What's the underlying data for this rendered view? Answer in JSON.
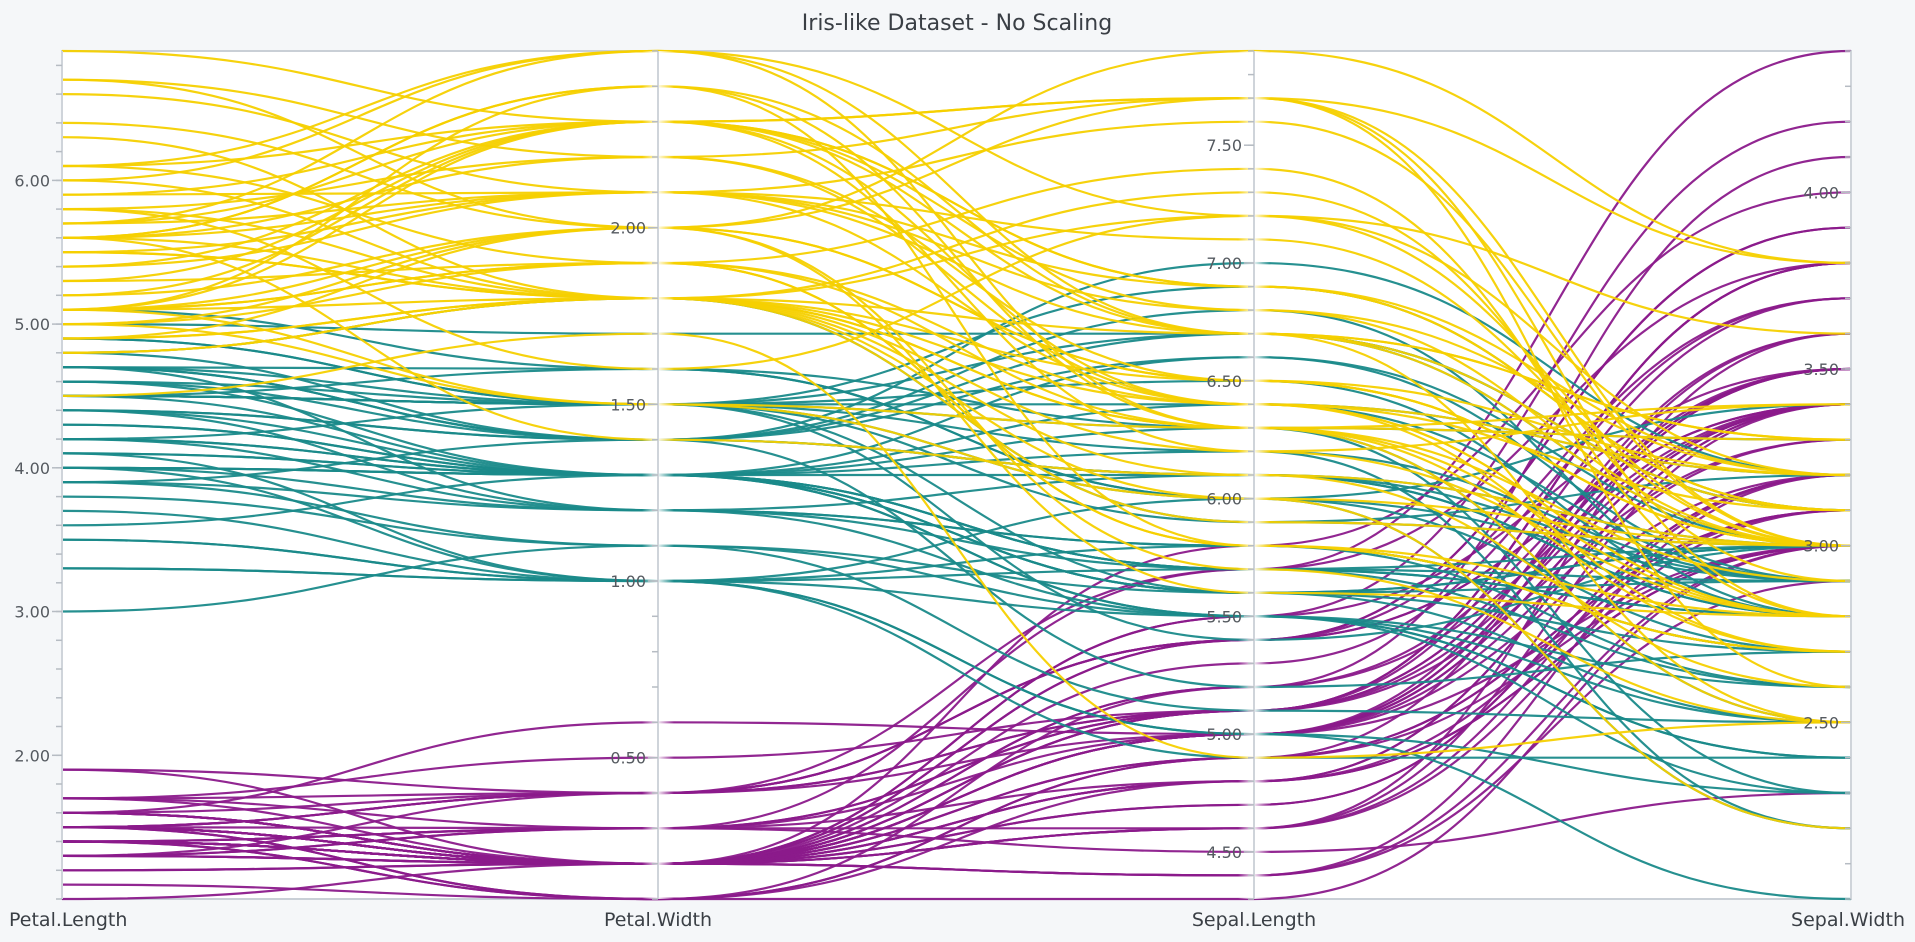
{
  "chart_data": {
    "type": "parallel-coordinates",
    "title": "Iris-like Dataset - No Scaling",
    "dimensions": [
      {
        "name": "Petal.Length",
        "ylim": [
          1.0,
          6.9
        ],
        "ticks": [
          "2.00",
          "3.00",
          "4.00",
          "5.00",
          "6.00"
        ],
        "tick_values": [
          2,
          3,
          4,
          5,
          6
        ]
      },
      {
        "name": "Petal.Width",
        "ylim": [
          0.1,
          2.5
        ],
        "ticks": [
          "0.50",
          "1.00",
          "1.50",
          "2.00"
        ],
        "tick_values": [
          0.5,
          1.0,
          1.5,
          2.0
        ]
      },
      {
        "name": "Sepal.Length",
        "ylim": [
          4.3,
          7.9
        ],
        "ticks": [
          "4.50",
          "5.00",
          "5.50",
          "6.00",
          "6.50",
          "7.00",
          "7.50"
        ],
        "tick_values": [
          4.5,
          5.0,
          5.5,
          6.0,
          6.5,
          7.0,
          7.5
        ]
      },
      {
        "name": "Sepal.Width",
        "ylim": [
          2.0,
          4.4
        ],
        "ticks": [
          "2.50",
          "3.00",
          "3.50",
          "4.00"
        ],
        "tick_values": [
          2.5,
          3.0,
          3.5,
          4.0
        ]
      }
    ],
    "series": [
      {
        "color": "#8b1a8b",
        "rows": [
          [
            1.4,
            0.2,
            5.1,
            3.5
          ],
          [
            1.4,
            0.2,
            4.9,
            3.0
          ],
          [
            1.3,
            0.2,
            4.7,
            3.2
          ],
          [
            1.5,
            0.2,
            4.6,
            3.1
          ],
          [
            1.4,
            0.2,
            5.0,
            3.6
          ],
          [
            1.7,
            0.4,
            5.4,
            3.9
          ],
          [
            1.4,
            0.3,
            4.6,
            3.4
          ],
          [
            1.5,
            0.2,
            5.0,
            3.4
          ],
          [
            1.4,
            0.2,
            4.4,
            2.9
          ],
          [
            1.5,
            0.1,
            4.9,
            3.1
          ],
          [
            1.5,
            0.2,
            5.4,
            3.7
          ],
          [
            1.6,
            0.2,
            4.8,
            3.4
          ],
          [
            1.4,
            0.1,
            4.8,
            3.0
          ],
          [
            1.1,
            0.1,
            4.3,
            3.0
          ],
          [
            1.2,
            0.2,
            5.8,
            4.0
          ],
          [
            1.5,
            0.4,
            5.7,
            4.4
          ],
          [
            1.3,
            0.4,
            5.4,
            3.9
          ],
          [
            1.4,
            0.3,
            5.1,
            3.5
          ],
          [
            1.7,
            0.3,
            5.7,
            3.8
          ],
          [
            1.5,
            0.3,
            5.1,
            3.8
          ],
          [
            1.7,
            0.2,
            5.4,
            3.4
          ],
          [
            1.5,
            0.4,
            5.1,
            3.7
          ],
          [
            1.0,
            0.2,
            4.6,
            3.6
          ],
          [
            1.7,
            0.5,
            5.1,
            3.3
          ],
          [
            1.9,
            0.2,
            4.8,
            3.4
          ],
          [
            1.6,
            0.2,
            5.0,
            3.0
          ],
          [
            1.6,
            0.4,
            5.0,
            3.4
          ],
          [
            1.5,
            0.2,
            5.2,
            3.5
          ],
          [
            1.4,
            0.2,
            5.2,
            3.4
          ],
          [
            1.6,
            0.2,
            4.7,
            3.2
          ],
          [
            1.6,
            0.2,
            4.8,
            3.1
          ],
          [
            1.5,
            0.4,
            5.4,
            3.4
          ],
          [
            1.5,
            0.1,
            5.2,
            4.1
          ],
          [
            1.4,
            0.2,
            5.5,
            4.2
          ],
          [
            1.5,
            0.2,
            4.9,
            3.1
          ],
          [
            1.2,
            0.2,
            5.0,
            3.2
          ],
          [
            1.3,
            0.2,
            5.5,
            3.5
          ],
          [
            1.4,
            0.1,
            4.9,
            3.6
          ],
          [
            1.3,
            0.2,
            4.4,
            3.0
          ],
          [
            1.5,
            0.2,
            5.1,
            3.4
          ],
          [
            1.3,
            0.3,
            5.0,
            3.5
          ],
          [
            1.3,
            0.3,
            4.5,
            2.3
          ],
          [
            1.3,
            0.2,
            4.4,
            3.2
          ],
          [
            1.6,
            0.6,
            5.0,
            3.5
          ],
          [
            1.9,
            0.4,
            5.1,
            3.8
          ],
          [
            1.4,
            0.3,
            4.8,
            3.0
          ],
          [
            1.6,
            0.2,
            5.1,
            3.8
          ],
          [
            1.4,
            0.2,
            4.6,
            3.2
          ],
          [
            1.5,
            0.2,
            5.3,
            3.7
          ],
          [
            1.4,
            0.2,
            5.0,
            3.3
          ]
        ]
      },
      {
        "color": "#1a8a8a",
        "rows": [
          [
            4.7,
            1.4,
            7.0,
            3.2
          ],
          [
            4.5,
            1.5,
            6.4,
            3.2
          ],
          [
            4.9,
            1.5,
            6.9,
            3.1
          ],
          [
            4.0,
            1.3,
            5.5,
            2.3
          ],
          [
            4.6,
            1.5,
            6.5,
            2.8
          ],
          [
            4.5,
            1.3,
            5.7,
            2.8
          ],
          [
            4.7,
            1.6,
            6.3,
            3.3
          ],
          [
            3.3,
            1.0,
            4.9,
            2.4
          ],
          [
            4.6,
            1.3,
            6.6,
            2.9
          ],
          [
            3.9,
            1.4,
            5.2,
            2.7
          ],
          [
            3.5,
            1.0,
            5.0,
            2.0
          ],
          [
            4.2,
            1.5,
            5.9,
            3.0
          ],
          [
            4.0,
            1.0,
            6.0,
            2.2
          ],
          [
            4.7,
            1.4,
            6.1,
            2.9
          ],
          [
            3.6,
            1.3,
            5.6,
            2.9
          ],
          [
            4.4,
            1.4,
            6.7,
            3.1
          ],
          [
            4.5,
            1.5,
            5.6,
            3.0
          ],
          [
            4.1,
            1.0,
            5.8,
            2.7
          ],
          [
            4.5,
            1.5,
            6.2,
            2.2
          ],
          [
            3.9,
            1.1,
            5.6,
            2.5
          ],
          [
            4.8,
            1.8,
            5.9,
            3.2
          ],
          [
            4.0,
            1.3,
            6.1,
            2.8
          ],
          [
            4.9,
            1.5,
            6.3,
            2.5
          ],
          [
            4.7,
            1.2,
            6.1,
            2.8
          ],
          [
            4.3,
            1.3,
            6.4,
            2.9
          ],
          [
            4.4,
            1.4,
            6.6,
            3.0
          ],
          [
            4.8,
            1.4,
            6.8,
            2.8
          ],
          [
            5.0,
            1.7,
            6.7,
            3.0
          ],
          [
            4.5,
            1.5,
            6.0,
            2.9
          ],
          [
            3.5,
            1.0,
            5.7,
            2.6
          ],
          [
            3.8,
            1.1,
            5.5,
            2.4
          ],
          [
            3.7,
            1.0,
            5.5,
            2.4
          ],
          [
            3.9,
            1.2,
            5.8,
            2.7
          ],
          [
            5.1,
            1.6,
            6.0,
            2.7
          ],
          [
            4.5,
            1.5,
            5.4,
            3.0
          ],
          [
            4.5,
            1.6,
            6.0,
            3.4
          ],
          [
            4.7,
            1.5,
            6.7,
            3.1
          ],
          [
            4.4,
            1.3,
            6.3,
            2.3
          ],
          [
            4.1,
            1.3,
            5.6,
            3.0
          ],
          [
            4.0,
            1.3,
            5.5,
            2.5
          ],
          [
            4.4,
            1.2,
            5.5,
            2.6
          ],
          [
            4.6,
            1.4,
            6.1,
            3.0
          ],
          [
            4.0,
            1.2,
            5.8,
            2.6
          ],
          [
            3.3,
            1.0,
            5.0,
            2.3
          ],
          [
            4.2,
            1.3,
            5.6,
            2.7
          ],
          [
            4.2,
            1.2,
            5.7,
            3.0
          ],
          [
            4.2,
            1.3,
            5.7,
            2.9
          ],
          [
            4.3,
            1.3,
            6.2,
            2.9
          ],
          [
            3.0,
            1.1,
            5.1,
            2.5
          ],
          [
            4.1,
            1.3,
            5.7,
            2.8
          ]
        ]
      },
      {
        "color": "#f5d000",
        "rows": [
          [
            6.0,
            2.5,
            6.3,
            3.3
          ],
          [
            5.1,
            1.9,
            5.8,
            2.7
          ],
          [
            5.9,
            2.1,
            7.1,
            3.0
          ],
          [
            5.6,
            1.8,
            6.3,
            2.9
          ],
          [
            5.8,
            2.2,
            6.5,
            3.0
          ],
          [
            6.6,
            2.1,
            7.6,
            3.0
          ],
          [
            4.5,
            1.7,
            4.9,
            2.5
          ],
          [
            6.3,
            1.8,
            7.3,
            2.9
          ],
          [
            5.8,
            1.8,
            6.7,
            2.5
          ],
          [
            6.1,
            2.5,
            7.2,
            3.6
          ],
          [
            5.1,
            2.0,
            6.5,
            3.2
          ],
          [
            5.3,
            1.9,
            6.4,
            2.7
          ],
          [
            5.5,
            2.1,
            6.8,
            3.0
          ],
          [
            5.0,
            2.0,
            5.7,
            2.5
          ],
          [
            5.1,
            2.4,
            5.8,
            2.8
          ],
          [
            5.3,
            2.3,
            6.4,
            3.2
          ],
          [
            5.5,
            1.8,
            6.5,
            3.0
          ],
          [
            6.7,
            2.2,
            7.7,
            3.8
          ],
          [
            6.9,
            2.3,
            7.7,
            2.6
          ],
          [
            5.0,
            1.5,
            6.0,
            2.2
          ],
          [
            5.7,
            2.3,
            6.9,
            3.2
          ],
          [
            4.9,
            2.0,
            5.6,
            2.8
          ],
          [
            6.7,
            2.0,
            7.7,
            2.8
          ],
          [
            4.9,
            1.8,
            6.3,
            2.7
          ],
          [
            5.7,
            2.1,
            6.7,
            3.3
          ],
          [
            6.0,
            1.8,
            7.2,
            3.2
          ],
          [
            4.8,
            1.8,
            6.2,
            2.8
          ],
          [
            4.9,
            1.8,
            6.1,
            3.0
          ],
          [
            5.6,
            2.1,
            6.4,
            2.8
          ],
          [
            5.8,
            1.6,
            7.2,
            3.0
          ],
          [
            6.1,
            1.9,
            7.4,
            2.8
          ],
          [
            6.4,
            2.0,
            7.9,
            3.8
          ],
          [
            5.6,
            2.2,
            6.4,
            2.8
          ],
          [
            5.1,
            1.5,
            6.3,
            2.8
          ],
          [
            5.6,
            1.4,
            6.1,
            2.6
          ],
          [
            6.1,
            2.3,
            7.7,
            3.0
          ],
          [
            5.6,
            2.4,
            6.3,
            3.4
          ],
          [
            5.5,
            1.8,
            6.4,
            3.1
          ],
          [
            4.8,
            1.8,
            6.0,
            3.0
          ],
          [
            5.4,
            2.1,
            6.9,
            3.1
          ],
          [
            5.6,
            2.4,
            6.7,
            3.1
          ],
          [
            5.1,
            2.3,
            6.9,
            3.1
          ],
          [
            5.1,
            1.9,
            5.8,
            2.7
          ],
          [
            5.9,
            2.3,
            6.8,
            3.2
          ],
          [
            5.7,
            2.5,
            6.7,
            3.3
          ],
          [
            5.2,
            2.3,
            6.7,
            3.0
          ],
          [
            5.0,
            1.9,
            6.3,
            2.5
          ],
          [
            5.2,
            2.0,
            6.5,
            3.0
          ],
          [
            5.4,
            2.3,
            6.2,
            3.4
          ],
          [
            5.1,
            1.8,
            5.9,
            3.0
          ]
        ]
      }
    ]
  }
}
